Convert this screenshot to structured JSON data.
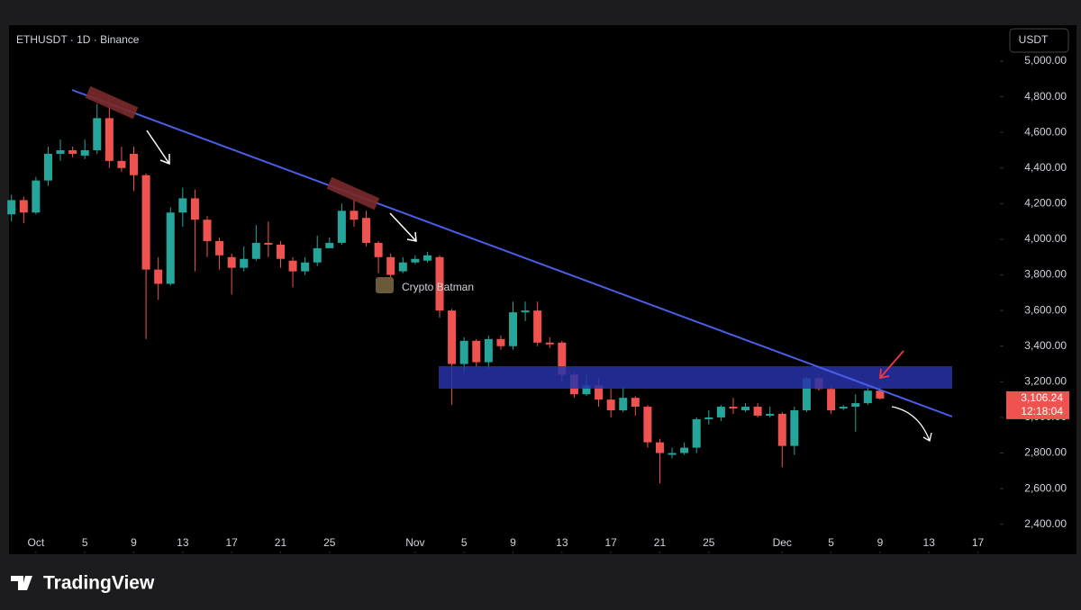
{
  "chart_data": {
    "type": "candlestick",
    "title": "ETHUSDT · 1D · Binance",
    "currency": "USDT",
    "watermark": "Crypto Batman",
    "brand": "TradingView",
    "up_color": "#26a69a",
    "down_color": "#ef5350",
    "last_price": {
      "value": 3106.24,
      "label": "3,106.24"
    },
    "countdown": "12:18:04",
    "x": [
      -2,
      -1,
      0,
      1,
      2,
      3,
      4,
      5,
      6,
      7,
      8,
      9,
      10,
      11,
      12,
      13,
      14,
      15,
      16,
      17,
      18,
      19,
      20,
      21,
      22,
      23,
      24,
      25,
      26,
      27,
      28,
      29,
      30,
      31,
      32,
      33,
      34,
      35,
      36,
      37,
      38,
      39,
      40,
      41,
      42,
      43,
      44,
      45,
      46,
      47,
      48,
      49,
      50,
      51,
      52,
      53,
      54,
      55,
      56,
      57,
      58,
      59,
      60,
      61,
      62,
      63,
      64,
      65,
      66,
      67,
      68,
      69
    ],
    "open": [
      4140,
      4220,
      4150,
      4330,
      4480,
      4500,
      4470,
      4500,
      4680,
      4440,
      4480,
      4360,
      3830,
      3750,
      4150,
      4230,
      4110,
      3990,
      3900,
      3840,
      3890,
      3980,
      3970,
      3880,
      3820,
      3870,
      3950,
      3980,
      4160,
      4120,
      3980,
      3900,
      3820,
      3870,
      3880,
      3900,
      3600,
      3300,
      3430,
      3310,
      3440,
      3400,
      3590,
      3600,
      3420,
      3420,
      3240,
      3130,
      3180,
      3100,
      3040,
      3110,
      3060,
      2860,
      2790,
      2800,
      2830,
      2990,
      3000,
      3060,
      3040,
      3060,
      3010,
      3020,
      2840,
      3040,
      3220,
      3160,
      3050,
      3060,
      3080,
      3150
    ],
    "high": [
      4250,
      4240,
      4350,
      4520,
      4560,
      4520,
      4560,
      4760,
      4780,
      4520,
      4520,
      4370,
      3900,
      4180,
      4290,
      4280,
      4130,
      4010,
      3920,
      3960,
      4080,
      4100,
      3990,
      3900,
      3900,
      4020,
      4010,
      4200,
      4230,
      4160,
      3990,
      3920,
      3900,
      3910,
      3930,
      3910,
      3610,
      3450,
      3440,
      3460,
      3460,
      3650,
      3650,
      3650,
      3450,
      3430,
      3250,
      3240,
      3220,
      3160,
      3170,
      3120,
      3070,
      2880,
      2830,
      2860,
      3000,
      3040,
      3070,
      3110,
      3080,
      3080,
      3060,
      3030,
      3060,
      3230,
      3230,
      3180,
      3070,
      3130,
      3180,
      3170
    ],
    "low": [
      4100,
      4090,
      4140,
      4300,
      4440,
      4460,
      4450,
      4480,
      4400,
      4380,
      4270,
      3440,
      3660,
      3740,
      4070,
      3820,
      3900,
      3830,
      3690,
      3820,
      3880,
      3900,
      3840,
      3730,
      3800,
      3850,
      3950,
      3970,
      4070,
      3960,
      3810,
      3700,
      3810,
      3860,
      3870,
      3560,
      3070,
      3250,
      3280,
      3270,
      3380,
      3380,
      3540,
      3400,
      3390,
      3200,
      3110,
      3120,
      3060,
      3000,
      3030,
      3010,
      2830,
      2630,
      2770,
      2790,
      2800,
      2960,
      2980,
      3020,
      3030,
      3000,
      3000,
      2720,
      2790,
      3030,
      3150,
      3020,
      3040,
      2920,
      3070,
      3100
    ],
    "close": [
      4220,
      4150,
      4330,
      4480,
      4500,
      4480,
      4500,
      4680,
      4440,
      4400,
      4360,
      3830,
      3750,
      4150,
      4230,
      4110,
      3990,
      3910,
      3840,
      3890,
      3980,
      3970,
      3890,
      3820,
      3870,
      3950,
      3980,
      4160,
      4110,
      3980,
      3900,
      3800,
      3870,
      3890,
      3910,
      3600,
      3300,
      3430,
      3310,
      3440,
      3400,
      3590,
      3600,
      3420,
      3410,
      3240,
      3130,
      3180,
      3100,
      3040,
      3110,
      3060,
      2860,
      2800,
      2800,
      2830,
      2990,
      3000,
      3060,
      3050,
      3060,
      3010,
      3020,
      2840,
      3040,
      3220,
      3160,
      3040,
      3060,
      3080,
      3150,
      3106.24
    ],
    "xlim": [
      -2.2,
      78.8
    ],
    "xticks": [
      {
        "value": 0,
        "label": "Oct"
      },
      {
        "value": 4,
        "label": "5"
      },
      {
        "value": 8,
        "label": "9"
      },
      {
        "value": 12,
        "label": "13"
      },
      {
        "value": 16,
        "label": "17"
      },
      {
        "value": 20,
        "label": "21"
      },
      {
        "value": 24,
        "label": "25"
      },
      {
        "value": 31,
        "label": "Nov"
      },
      {
        "value": 35,
        "label": "5"
      },
      {
        "value": 39,
        "label": "9"
      },
      {
        "value": 43,
        "label": "13"
      },
      {
        "value": 47,
        "label": "17"
      },
      {
        "value": 51,
        "label": "21"
      },
      {
        "value": 55,
        "label": "25"
      },
      {
        "value": 61,
        "label": "Dec"
      },
      {
        "value": 65,
        "label": "5"
      },
      {
        "value": 69,
        "label": "9"
      },
      {
        "value": 73,
        "label": "13"
      },
      {
        "value": 77,
        "label": "17"
      }
    ],
    "ylim": [
      2237,
      5202
    ],
    "yticks": [
      {
        "value": 2400,
        "label": "2,400.00"
      },
      {
        "value": 2600,
        "label": "2,600.00"
      },
      {
        "value": 2800,
        "label": "2,800.00"
      },
      {
        "value": 3000,
        "label": "3,000.00"
      },
      {
        "value": 3200,
        "label": "3,200.00"
      },
      {
        "value": 3400,
        "label": "3,400.00"
      },
      {
        "value": 3600,
        "label": "3,600.00"
      },
      {
        "value": 3800,
        "label": "3,800.00"
      },
      {
        "value": 4000,
        "label": "4,000.00"
      },
      {
        "value": 4200,
        "label": "4,200.00"
      },
      {
        "value": 4400,
        "label": "4,400.00"
      },
      {
        "value": 4600,
        "label": "4,600.00"
      },
      {
        "value": 4800,
        "label": "4,800.00"
      },
      {
        "value": 5000,
        "label": "5,000.00"
      }
    ]
  }
}
